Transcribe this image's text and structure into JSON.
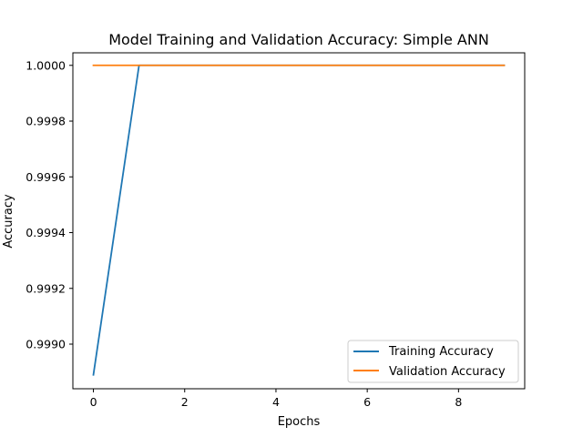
{
  "chart_data": {
    "type": "line",
    "title": "Model Training and Validation Accuracy: Simple ANN",
    "xlabel": "Epochs",
    "ylabel": "Accuracy",
    "xlim": [
      -0.45,
      9.45
    ],
    "ylim": [
      0.99884,
      1.000045
    ],
    "x_ticks": [
      0,
      2,
      4,
      6,
      8
    ],
    "x_tick_labels": [
      "0",
      "2",
      "4",
      "6",
      "8"
    ],
    "y_ticks": [
      0.999,
      0.9992,
      0.9994,
      0.9996,
      0.9998,
      1.0
    ],
    "y_tick_labels": [
      "0.9990",
      "0.9992",
      "0.9994",
      "0.9996",
      "0.9998",
      "1.0000"
    ],
    "grid": false,
    "legend_position": "lower right",
    "x": [
      0,
      1,
      2,
      3,
      4,
      5,
      6,
      7,
      8,
      9
    ],
    "series": [
      {
        "name": "Training Accuracy",
        "color": "#1f77b4",
        "values": [
          0.99889,
          1.0,
          1.0,
          1.0,
          1.0,
          1.0,
          1.0,
          1.0,
          1.0,
          1.0
        ]
      },
      {
        "name": "Validation Accuracy",
        "color": "#ff7f0e",
        "values": [
          1.0,
          1.0,
          1.0,
          1.0,
          1.0,
          1.0,
          1.0,
          1.0,
          1.0,
          1.0
        ]
      }
    ]
  }
}
